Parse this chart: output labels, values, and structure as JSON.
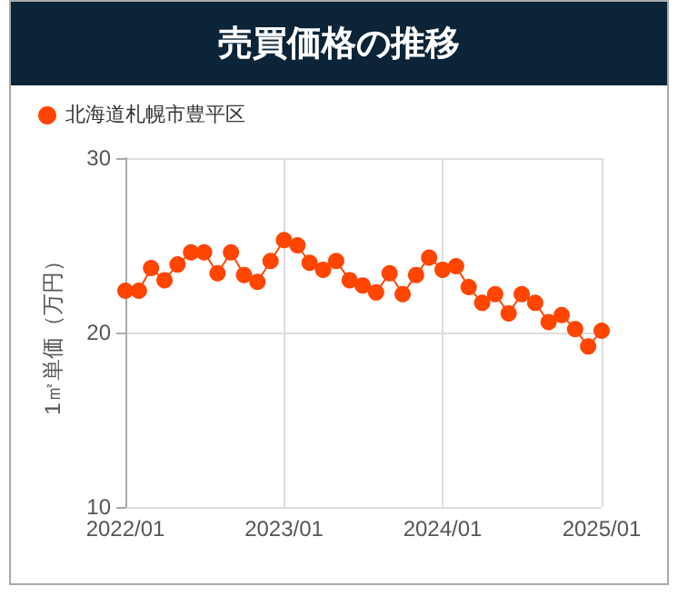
{
  "chart_data": {
    "type": "line",
    "title": "売買価格の推移",
    "ylabel": "1㎡単価（万円）",
    "x": [
      "2022-01",
      "2022-02",
      "2022-03",
      "2022-04",
      "2022-05",
      "2022-06",
      "2022-07",
      "2022-08",
      "2022-09",
      "2022-10",
      "2022-11",
      "2022-12",
      "2023-01",
      "2023-02",
      "2023-03",
      "2023-04",
      "2023-05",
      "2023-06",
      "2023-07",
      "2023-08",
      "2023-09",
      "2023-10",
      "2023-11",
      "2023-12",
      "2024-01",
      "2024-02",
      "2024-03",
      "2024-04",
      "2024-05",
      "2024-06",
      "2024-07",
      "2024-08",
      "2024-09",
      "2024-10",
      "2024-11",
      "2024-12",
      "2025-01"
    ],
    "series": [
      {
        "name": "北海道札幌市豊平区",
        "color": "#ff4500",
        "values": [
          22.4,
          22.4,
          23.7,
          23.0,
          23.9,
          24.6,
          24.6,
          23.4,
          24.6,
          23.3,
          22.9,
          24.1,
          25.3,
          25.0,
          24.0,
          23.6,
          24.1,
          23.0,
          22.7,
          22.3,
          23.4,
          22.2,
          23.3,
          24.3,
          23.6,
          23.8,
          22.6,
          21.7,
          22.2,
          21.1,
          22.2,
          21.7,
          20.6,
          21.0,
          20.2,
          19.2,
          20.1
        ]
      }
    ],
    "xlim": [
      "2022-01",
      "2025-01"
    ],
    "xticks": [
      {
        "value": "2022-01",
        "label": "2022/01"
      },
      {
        "value": "2023-01",
        "label": "2023/01"
      },
      {
        "value": "2024-01",
        "label": "2024/01"
      },
      {
        "value": "2025-01",
        "label": "2025/01"
      }
    ],
    "ylim": [
      10,
      30
    ],
    "yticks": [
      10,
      20,
      30
    ],
    "grid": true,
    "legend": "top left",
    "marker": "circle",
    "line_style": "solid"
  }
}
